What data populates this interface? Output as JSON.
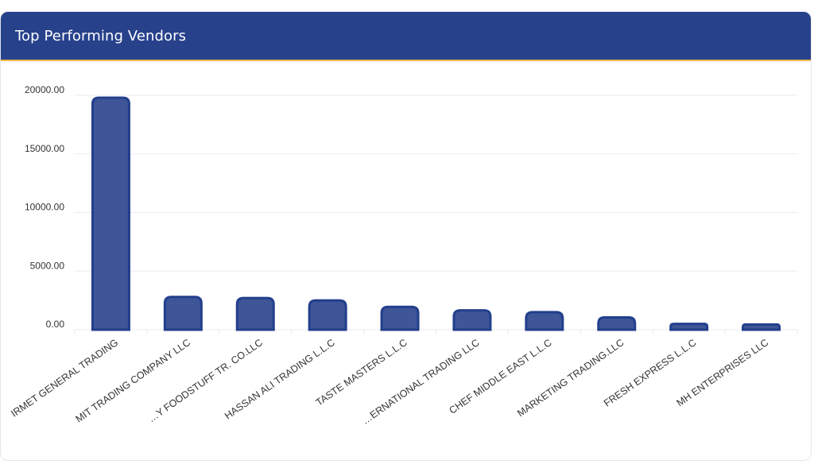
{
  "card": {
    "title": "Top Performing Vendors"
  },
  "colors": {
    "header": "#27418b",
    "accent": "#f0b64a",
    "bar_fill": "#3e5697",
    "bar_stroke": "#233f8c",
    "grid": "#e8ebf1"
  },
  "chart_data": {
    "type": "bar",
    "title": "Top Performing Vendors",
    "categories": [
      "IRMET GENERAL TRADING",
      "MIT TRADING COMPANY LLC",
      "…Y FOODSTUFF TR. CO.LLC",
      "HASSAN ALI TRADING L.L.C",
      "TASTE MASTERS L.L.C",
      "…ERNATIONAL TRADING LLC",
      "CHEF MIDDLE EAST L.L.C",
      "MARKETING TRADING.LLC",
      "FRESH EXPRESS L.L.C",
      "MH ENTERPRISES LLC"
    ],
    "values": [
      19800,
      2800,
      2700,
      2500,
      1950,
      1650,
      1500,
      1050,
      500,
      450
    ],
    "yticks": [
      "0.00",
      "5000.00",
      "10000.00",
      "15000.00",
      "20000.00"
    ],
    "ylim": [
      0,
      20000
    ],
    "grid": true,
    "legend": "none"
  }
}
